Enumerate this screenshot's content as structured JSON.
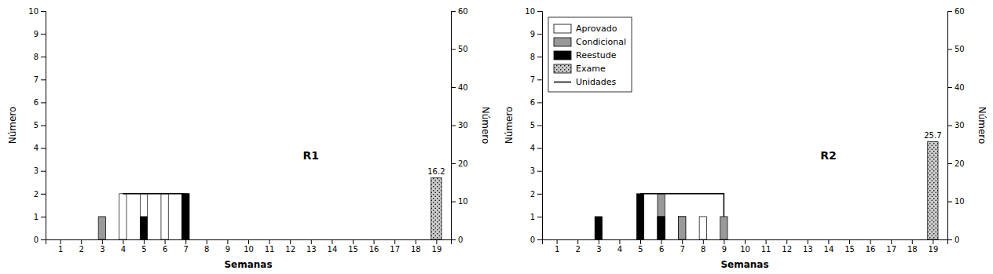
{
  "chart_data": [
    {
      "type": "bar",
      "x": [
        1,
        2,
        3,
        4,
        5,
        6,
        7,
        8,
        9,
        10,
        11,
        12,
        13,
        14,
        15,
        16,
        17,
        18,
        19
      ],
      "xlim": [
        0.3,
        19.7
      ],
      "xticks": [
        1,
        2,
        3,
        4,
        5,
        6,
        7,
        8,
        9,
        10,
        11,
        12,
        13,
        14,
        15,
        16,
        17,
        18,
        19
      ],
      "ylim": [
        0,
        10
      ],
      "yticks": [
        0,
        1,
        2,
        3,
        4,
        5,
        6,
        7,
        8,
        9,
        10
      ],
      "y2lim": [
        0,
        60
      ],
      "y2ticks": [
        0,
        10,
        20,
        30,
        40,
        50,
        60
      ],
      "xlabel": "Semanas",
      "ylabel": "Número",
      "y2label": "Número",
      "grid": false,
      "series": [
        {
          "name": "Aprovado",
          "type": "bar",
          "color": "#ffffff",
          "values": [
            0,
            0,
            0,
            2,
            2,
            2,
            2,
            0,
            0,
            0,
            0,
            0,
            0,
            0,
            0,
            0,
            0,
            0,
            0
          ]
        },
        {
          "name": "Condicional",
          "type": "bar",
          "color": "#999999",
          "values": [
            0,
            0,
            1,
            0,
            0,
            0,
            0,
            0,
            0,
            0,
            0,
            0,
            0,
            0,
            0,
            0,
            0,
            0,
            0
          ]
        },
        {
          "name": "Reestude",
          "type": "bar",
          "color": "#000000",
          "values": [
            0,
            0,
            0,
            0,
            1,
            0,
            2,
            0,
            0,
            0,
            0,
            0,
            0,
            0,
            0,
            0,
            0,
            0,
            0
          ]
        },
        {
          "name": "Exame",
          "type": "bar",
          "axis": "y2",
          "color": "#cccccc",
          "x": [
            19
          ],
          "values": [
            16.2
          ],
          "data_labels": true
        },
        {
          "name": "Unidades",
          "type": "step",
          "color": "#000000",
          "line_style": "solid",
          "x": [
            4,
            7
          ],
          "values": [
            2,
            2
          ]
        }
      ],
      "annotations": [
        {
          "text": "R1",
          "x": 13,
          "y": 3.5
        }
      ]
    },
    {
      "type": "bar",
      "x": [
        1,
        2,
        3,
        4,
        5,
        6,
        7,
        8,
        9,
        10,
        11,
        12,
        13,
        14,
        15,
        16,
        17,
        18,
        19
      ],
      "xlim": [
        0.3,
        19.7
      ],
      "xticks": [
        1,
        2,
        3,
        4,
        5,
        6,
        7,
        8,
        9,
        10,
        11,
        12,
        13,
        14,
        15,
        16,
        17,
        18,
        19
      ],
      "ylim": [
        0,
        10
      ],
      "yticks": [
        0,
        1,
        2,
        3,
        4,
        5,
        6,
        7,
        8,
        9,
        10
      ],
      "y2lim": [
        0,
        60
      ],
      "y2ticks": [
        0,
        10,
        20,
        30,
        40,
        50,
        60
      ],
      "xlabel": "Semanas",
      "ylabel": "Número",
      "y2label": "Número",
      "grid": false,
      "legend": "upper left",
      "series": [
        {
          "name": "Aprovado",
          "type": "bar",
          "color": "#ffffff",
          "values": [
            0,
            0,
            0,
            0,
            0,
            1,
            1,
            1,
            0,
            0,
            0,
            0,
            0,
            0,
            0,
            0,
            0,
            0,
            0
          ]
        },
        {
          "name": "Condicional",
          "type": "bar",
          "color": "#999999",
          "values": [
            0,
            0,
            0,
            0,
            0,
            2,
            1,
            0,
            1,
            0,
            0,
            0,
            0,
            0,
            0,
            0,
            0,
            0,
            0
          ]
        },
        {
          "name": "Reestude",
          "type": "bar",
          "color": "#000000",
          "values": [
            0,
            0,
            1,
            0,
            2,
            1,
            0,
            0,
            0,
            0,
            0,
            0,
            0,
            0,
            0,
            0,
            0,
            0,
            0
          ]
        },
        {
          "name": "Exame",
          "type": "bar",
          "axis": "y2",
          "color": "#cccccc",
          "x": [
            19
          ],
          "values": [
            25.7
          ],
          "data_labels": true
        },
        {
          "name": "Unidades",
          "type": "step",
          "color": "#000000",
          "line_style": "solid",
          "x": [
            5,
            9
          ],
          "values": [
            2,
            1
          ]
        }
      ],
      "annotations": [
        {
          "text": "R2",
          "x": 14,
          "y": 3.5
        }
      ]
    }
  ]
}
